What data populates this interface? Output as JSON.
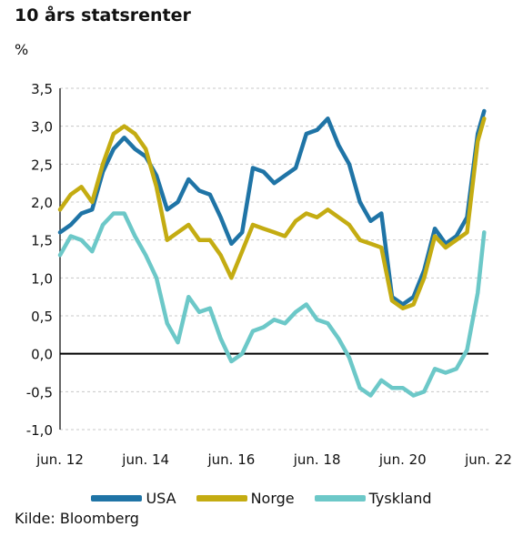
{
  "title": "10 års statsrenter",
  "unit": "%",
  "source": "Kilde: Bloomberg",
  "colors": {
    "USA": "#1f74a6",
    "Norge": "#c4ac12",
    "Tyskland": "#6cc8c8",
    "zero": "#000000",
    "grid": "#c8c8c8"
  },
  "chart_data": {
    "type": "line",
    "title": "10 års statsrenter",
    "ylabel": "%",
    "ylim": [
      -1.0,
      3.5
    ],
    "xlim": [
      2012.5,
      2022.5
    ],
    "yticks": [
      "3,5",
      "3,0",
      "2,5",
      "2,0",
      "1,5",
      "1,0",
      "0,5",
      "0,0",
      "-0,5",
      "-1,0"
    ],
    "ytick_values": [
      3.5,
      3.0,
      2.5,
      2.0,
      1.5,
      1.0,
      0.5,
      0.0,
      -0.5,
      -1.0
    ],
    "xticks": [
      "jun. 12",
      "jun. 14",
      "jun. 16",
      "jun. 18",
      "jun. 20",
      "jun. 22"
    ],
    "xtick_values": [
      2012.5,
      2014.5,
      2016.5,
      2018.5,
      2020.5,
      2022.5
    ],
    "grid": "horizontal dashed",
    "legend": "bottom",
    "series": [
      {
        "name": "USA",
        "x": [
          2012.5,
          2012.75,
          2013.0,
          2013.25,
          2013.5,
          2013.75,
          2014.0,
          2014.25,
          2014.5,
          2014.75,
          2015.0,
          2015.25,
          2015.5,
          2015.75,
          2016.0,
          2016.25,
          2016.5,
          2016.75,
          2017.0,
          2017.25,
          2017.5,
          2017.75,
          2018.0,
          2018.25,
          2018.5,
          2018.75,
          2019.0,
          2019.25,
          2019.5,
          2019.75,
          2020.0,
          2020.25,
          2020.5,
          2020.75,
          2021.0,
          2021.25,
          2021.5,
          2021.75,
          2022.0,
          2022.25,
          2022.4
        ],
        "values": [
          1.6,
          1.7,
          1.85,
          1.9,
          2.4,
          2.7,
          2.85,
          2.7,
          2.6,
          2.35,
          1.9,
          2.0,
          2.3,
          2.15,
          2.1,
          1.8,
          1.45,
          1.6,
          2.45,
          2.4,
          2.25,
          2.35,
          2.45,
          2.9,
          2.95,
          3.1,
          2.75,
          2.5,
          2.0,
          1.75,
          1.85,
          0.75,
          0.65,
          0.75,
          1.1,
          1.65,
          1.45,
          1.55,
          1.8,
          2.9,
          3.2
        ]
      },
      {
        "name": "Norge",
        "x": [
          2012.5,
          2012.75,
          2013.0,
          2013.25,
          2013.5,
          2013.75,
          2014.0,
          2014.25,
          2014.5,
          2014.75,
          2015.0,
          2015.25,
          2015.5,
          2015.75,
          2016.0,
          2016.25,
          2016.5,
          2016.75,
          2017.0,
          2017.25,
          2017.5,
          2017.75,
          2018.0,
          2018.25,
          2018.5,
          2018.75,
          2019.0,
          2019.25,
          2019.5,
          2019.75,
          2020.0,
          2020.25,
          2020.5,
          2020.75,
          2021.0,
          2021.25,
          2021.5,
          2021.75,
          2022.0,
          2022.25,
          2022.4
        ],
        "values": [
          1.9,
          2.1,
          2.2,
          2.0,
          2.5,
          2.9,
          3.0,
          2.9,
          2.7,
          2.2,
          1.5,
          1.6,
          1.7,
          1.5,
          1.5,
          1.3,
          1.0,
          1.35,
          1.7,
          1.65,
          1.6,
          1.55,
          1.75,
          1.85,
          1.8,
          1.9,
          1.8,
          1.7,
          1.5,
          1.45,
          1.4,
          0.7,
          0.6,
          0.65,
          1.0,
          1.55,
          1.4,
          1.5,
          1.6,
          2.8,
          3.1
        ]
      },
      {
        "name": "Tyskland",
        "x": [
          2012.5,
          2012.75,
          2013.0,
          2013.25,
          2013.5,
          2013.75,
          2014.0,
          2014.25,
          2014.5,
          2014.75,
          2015.0,
          2015.25,
          2015.5,
          2015.75,
          2016.0,
          2016.25,
          2016.5,
          2016.75,
          2017.0,
          2017.25,
          2017.5,
          2017.75,
          2018.0,
          2018.25,
          2018.5,
          2018.75,
          2019.0,
          2019.25,
          2019.5,
          2019.75,
          2020.0,
          2020.25,
          2020.5,
          2020.75,
          2021.0,
          2021.25,
          2021.5,
          2021.75,
          2022.0,
          2022.25,
          2022.4
        ],
        "values": [
          1.3,
          1.55,
          1.5,
          1.35,
          1.7,
          1.85,
          1.85,
          1.55,
          1.3,
          1.0,
          0.4,
          0.15,
          0.75,
          0.55,
          0.6,
          0.2,
          -0.1,
          0.0,
          0.3,
          0.35,
          0.45,
          0.4,
          0.55,
          0.65,
          0.45,
          0.4,
          0.2,
          -0.05,
          -0.45,
          -0.55,
          -0.35,
          -0.45,
          -0.45,
          -0.55,
          -0.5,
          -0.2,
          -0.25,
          -0.2,
          0.05,
          0.8,
          1.6
        ]
      }
    ]
  }
}
